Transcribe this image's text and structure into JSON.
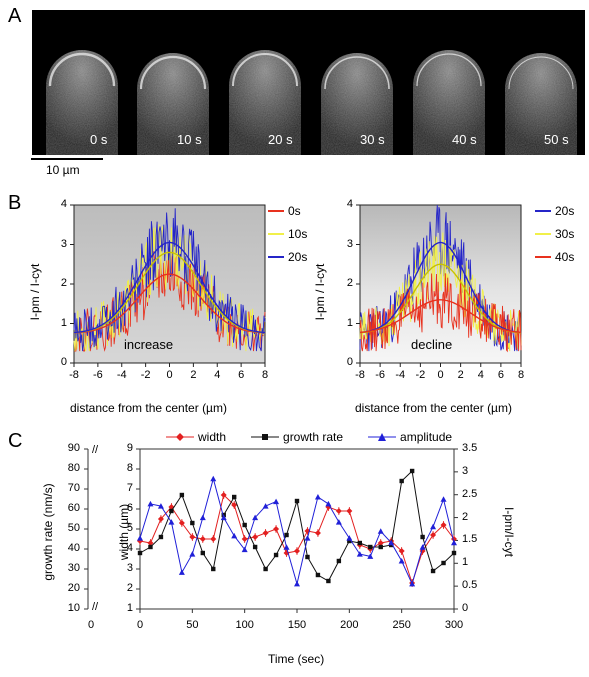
{
  "panel_a": {
    "letter": "A",
    "frames": [
      "0 s",
      "10 s",
      "20 s",
      "30 s",
      "40 s",
      "50 s"
    ],
    "scale_bar_label": "10 µm"
  },
  "panel_b": {
    "letter": "B",
    "left": {
      "legend": [
        {
          "label": "0s",
          "color": "#e8311e"
        },
        {
          "label": "10s",
          "color": "#f1f04a"
        },
        {
          "label": "20s",
          "color": "#2525c8"
        }
      ],
      "annotation": "increase",
      "ylabel": "I-pm / I-cyt",
      "xlabel": "distance from the center (µm)",
      "xticks": [
        "-8",
        "-6",
        "-4",
        "-2",
        "0",
        "2",
        "4",
        "6",
        "8"
      ],
      "yticks": [
        "0",
        "1",
        "2",
        "3",
        "4"
      ]
    },
    "right": {
      "legend": [
        {
          "label": "20s",
          "color": "#2525c8"
        },
        {
          "label": "30s",
          "color": "#f1f04a"
        },
        {
          "label": "40s",
          "color": "#e8311e"
        }
      ],
      "annotation": "decline",
      "ylabel": "I-pm / I-cyt",
      "xlabel": "distance from the center (µm)",
      "xticks": [
        "-8",
        "-6",
        "-4",
        "-2",
        "0",
        "2",
        "4",
        "6",
        "8"
      ],
      "yticks": [
        "0",
        "1",
        "2",
        "3",
        "4"
      ]
    }
  },
  "panel_c": {
    "letter": "C",
    "legend": [
      {
        "label": "width",
        "color": "#e32020",
        "marker": "diamond"
      },
      {
        "label": "growth rate",
        "color": "#111111",
        "marker": "square"
      },
      {
        "label": "amplitude",
        "color": "#2020d8",
        "marker": "triangle"
      }
    ],
    "ylabel_left": "growth rate (nm/s)",
    "ylabel_mid": "width (µm)",
    "ylabel_right": "I-pm/I-cyt",
    "xlabel": "Time (sec)",
    "break_mark": "//",
    "left_ticks": [
      "90",
      "80",
      "70",
      "60",
      "50",
      "40",
      "30",
      "20",
      "10",
      "0"
    ],
    "mid_ticks": [
      "9",
      "8",
      "7",
      "6",
      "5",
      "4",
      "3",
      "2",
      "1"
    ],
    "right_ticks": [
      "3.5",
      "3",
      "2.5",
      "2",
      "1.5",
      "1",
      "0.5",
      "0"
    ],
    "xticks": [
      "0",
      "50",
      "100",
      "150",
      "200",
      "250",
      "300"
    ]
  },
  "chart_data": [
    {
      "type": "line",
      "ylabel": "I-pm / I-cyt",
      "xlabel": "distance from the center (µm)",
      "xlim": [
        -8,
        8
      ],
      "ylim": [
        0,
        4
      ],
      "series": [
        {
          "name": "0s",
          "fit_peak": 2.25,
          "fit_baseline": 0.75,
          "fit_sigma": 2.6
        },
        {
          "name": "10s",
          "fit_peak": 2.8,
          "fit_baseline": 0.75,
          "fit_sigma": 2.6
        },
        {
          "name": "20s",
          "fit_peak": 3.05,
          "fit_baseline": 0.75,
          "fit_sigma": 2.6
        }
      ]
    },
    {
      "type": "line",
      "ylabel": "I-pm / I-cyt",
      "xlabel": "distance from the center (µm)",
      "xlim": [
        -8,
        8
      ],
      "ylim": [
        0,
        4
      ],
      "series": [
        {
          "name": "20s",
          "fit_peak": 3.05,
          "fit_baseline": 0.75,
          "fit_sigma": 2.6
        },
        {
          "name": "30s",
          "fit_peak": 2.5,
          "fit_baseline": 0.75,
          "fit_sigma": 2.6
        },
        {
          "name": "40s",
          "fit_peak": 1.6,
          "fit_baseline": 0.75,
          "fit_sigma": 3.0
        }
      ]
    },
    {
      "type": "line",
      "xlabel": "Time (sec)",
      "xlim": [
        0,
        300
      ],
      "x": [
        0,
        10,
        20,
        30,
        40,
        50,
        60,
        70,
        80,
        90,
        100,
        110,
        120,
        130,
        140,
        150,
        160,
        170,
        180,
        190,
        200,
        210,
        220,
        230,
        240,
        250,
        260,
        270,
        280,
        290,
        300
      ],
      "series": [
        {
          "name": "width",
          "axis": "width (µm)",
          "ylim": [
            1,
            9
          ],
          "values": [
            4.4,
            4.3,
            5.5,
            6.1,
            5.3,
            4.6,
            4.5,
            4.5,
            6.7,
            6.2,
            4.5,
            4.6,
            4.8,
            5.0,
            3.8,
            3.9,
            4.9,
            4.8,
            6.1,
            5.9,
            5.9,
            4.2,
            4.0,
            4.3,
            4.4,
            3.9,
            2.3,
            3.9,
            4.7,
            5.2,
            4.5
          ]
        },
        {
          "name": "growth rate",
          "axis": "growth rate (nm/s)",
          "ylim": [
            0,
            90
          ],
          "values": [
            38,
            41,
            46,
            59,
            67,
            53,
            38,
            30,
            57,
            66,
            52,
            41,
            30,
            37,
            47,
            64,
            36,
            27,
            24,
            34,
            44,
            43,
            41,
            41,
            42,
            74,
            79,
            46,
            29,
            33,
            38
          ]
        },
        {
          "name": "amplitude",
          "axis": "I-pm/I-cyt",
          "ylim": [
            0,
            3.5
          ],
          "values": [
            1.55,
            2.3,
            2.25,
            1.9,
            0.8,
            1.2,
            2.0,
            2.85,
            2.0,
            1.6,
            1.3,
            2.0,
            2.25,
            2.35,
            1.35,
            0.55,
            1.55,
            2.45,
            2.3,
            1.9,
            1.55,
            1.2,
            1.15,
            1.7,
            1.45,
            1.05,
            0.55,
            1.35,
            1.8,
            2.4,
            1.45
          ]
        }
      ]
    }
  ]
}
